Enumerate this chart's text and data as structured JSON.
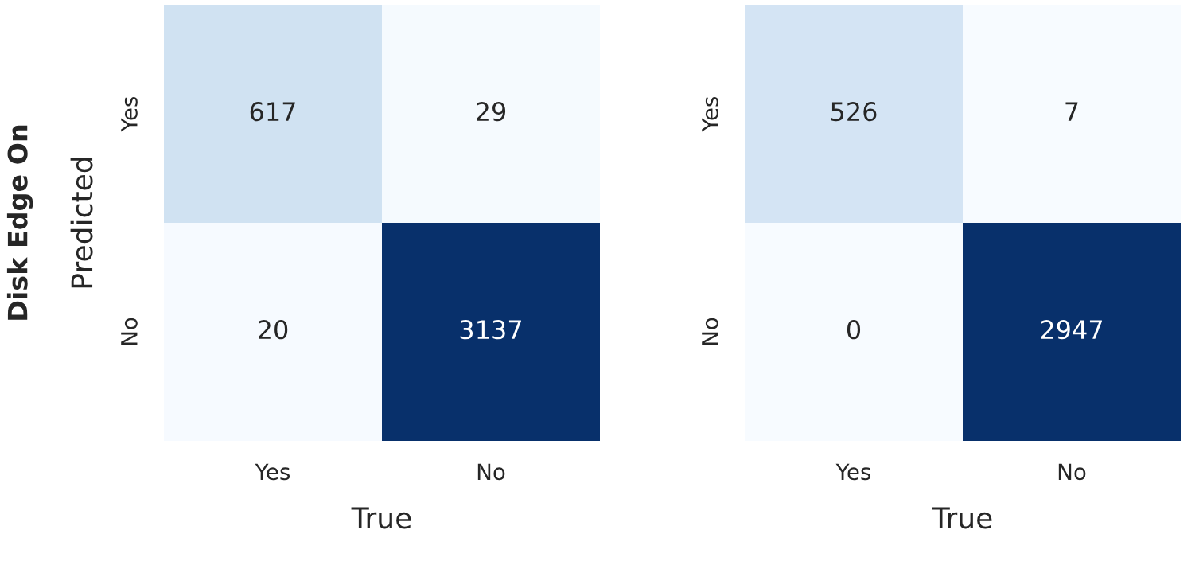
{
  "chart_data": [
    {
      "type": "heatmap",
      "categories": [
        "Yes",
        "No"
      ],
      "y_categories": [
        "Yes",
        "No"
      ],
      "cells": [
        [
          617,
          29
        ],
        [
          20,
          3137
        ]
      ],
      "data_labels": true,
      "xlabel": "True",
      "ylabel": "Predicted",
      "annotations": [
        "Disk Edge On"
      ],
      "grid": false
    },
    {
      "type": "heatmap",
      "categories": [
        "Yes",
        "No"
      ],
      "y_categories": [
        "Yes",
        "No"
      ],
      "cells": [
        [
          526,
          7
        ],
        [
          0,
          2947
        ]
      ],
      "data_labels": true,
      "xlabel": "True",
      "grid": false
    }
  ]
}
